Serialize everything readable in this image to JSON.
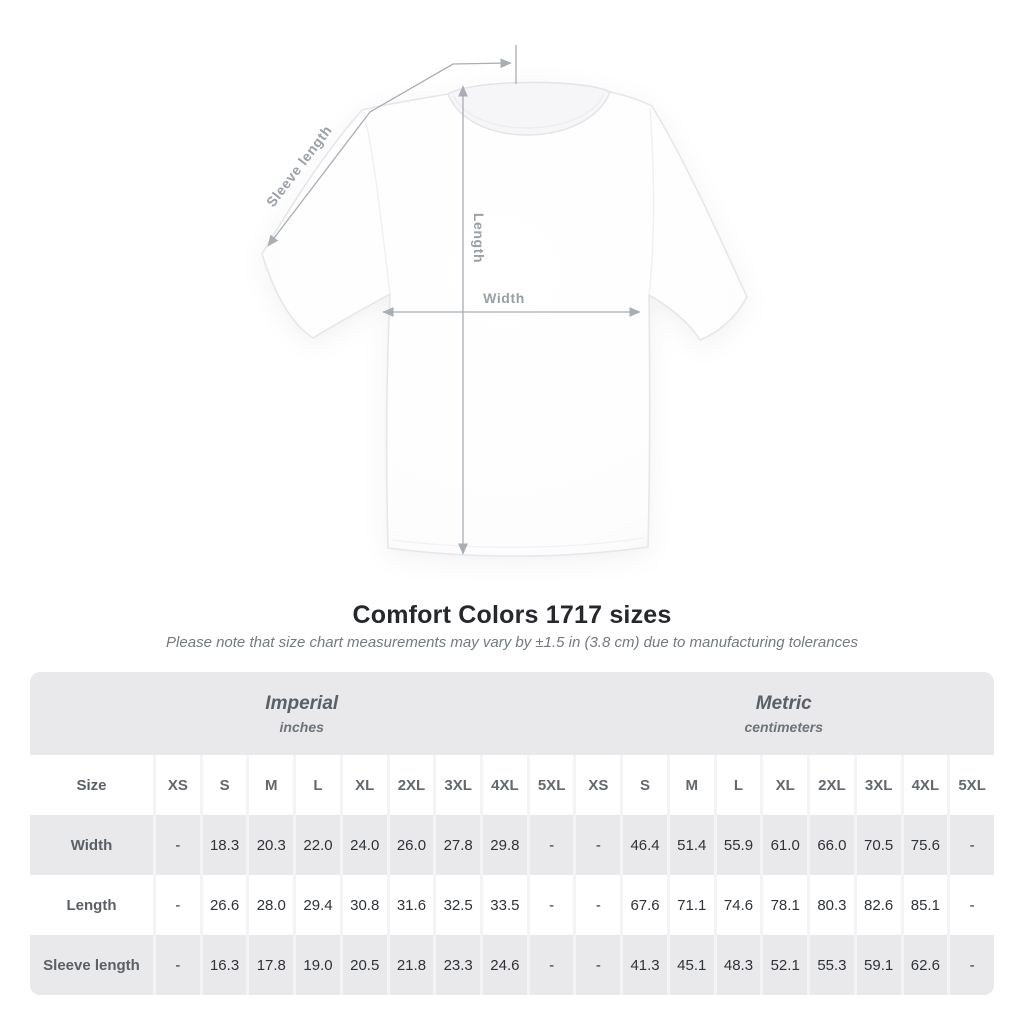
{
  "chart_data": {
    "type": "table",
    "title": "Comfort Colors 1717 sizes",
    "note": "Please note that size chart measurements may vary by ±1.5 in (3.8 cm) due to manufacturing tolerances",
    "groups": [
      {
        "label": "Imperial",
        "unit": "inches"
      },
      {
        "label": "Metric",
        "unit": "centimeters"
      }
    ],
    "size_header": "Size",
    "sizes": [
      "XS",
      "S",
      "M",
      "L",
      "XL",
      "2XL",
      "3XL",
      "4XL",
      "5XL"
    ],
    "rows": [
      {
        "label": "Width",
        "imperial": [
          "-",
          "18.3",
          "20.3",
          "22.0",
          "24.0",
          "26.0",
          "27.8",
          "29.8",
          "-"
        ],
        "metric": [
          "-",
          "46.4",
          "51.4",
          "55.9",
          "61.0",
          "66.0",
          "70.5",
          "75.6",
          "-"
        ]
      },
      {
        "label": "Length",
        "imperial": [
          "-",
          "26.6",
          "28.0",
          "29.4",
          "30.8",
          "31.6",
          "32.5",
          "33.5",
          "-"
        ],
        "metric": [
          "-",
          "67.6",
          "71.1",
          "74.6",
          "78.1",
          "80.3",
          "82.6",
          "85.1",
          "-"
        ]
      },
      {
        "label": "Sleeve length",
        "imperial": [
          "-",
          "16.3",
          "17.8",
          "19.0",
          "20.5",
          "21.8",
          "23.3",
          "24.6",
          "-"
        ],
        "metric": [
          "-",
          "41.3",
          "45.1",
          "48.3",
          "52.1",
          "55.3",
          "59.1",
          "62.6",
          "-"
        ]
      }
    ]
  },
  "diagram": {
    "sleeve_length_label": "Sleeve length",
    "length_label": "Length",
    "width_label": "Width"
  },
  "colors": {
    "band_gray": "#e9e9eb",
    "stripe_gray": "#e9e9eb",
    "separator": "#f4f4f6",
    "title_text": "#26282c",
    "subtitle_text": "#74797f",
    "header_text": "#5a6066",
    "value_text": "#2f3338",
    "annotation": "#a8aeb4",
    "shirt_outline": "#e7e7ea"
  }
}
